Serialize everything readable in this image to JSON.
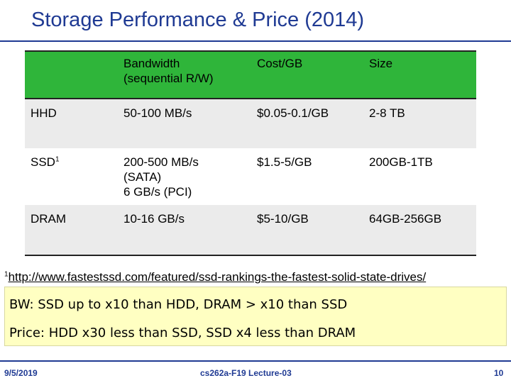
{
  "slide": {
    "title": "Storage Performance & Price (2014)"
  },
  "table": {
    "headers": [
      "",
      "Bandwidth\n(sequential R/W)",
      "Cost/GB",
      "Size"
    ],
    "header_bandwidth_line1": "Bandwidth",
    "header_bandwidth_line2": "(sequential R/W)",
    "header_cost": "Cost/GB",
    "header_size": "Size",
    "rows": [
      {
        "name": "HHD",
        "bandwidth": "50-100 MB/s",
        "cost": "$0.05-0.1/GB",
        "size": "2-8 TB"
      },
      {
        "name": "SSD",
        "name_sup": "1",
        "bandwidth_line1": "200-500 MB/s",
        "bandwidth_line2": "(SATA)",
        "bandwidth_line3": "6 GB/s (PCI)",
        "cost": "$1.5-5/GB",
        "size": "200GB-1TB"
      },
      {
        "name": "DRAM",
        "bandwidth": "10-16 GB/s",
        "cost": "$5-10/GB",
        "size": "64GB-256GB"
      }
    ]
  },
  "footnote": {
    "marker": "1",
    "url": "http://www.fastestssd.com/featured/ssd-rankings-the-fastest-solid-state-drives/"
  },
  "note": {
    "line1": "BW: SSD up to x10 than HDD, DRAM > x10 than SSD",
    "line2": "Price: HDD x30 less than SSD, SSD x4 less than DRAM"
  },
  "footer": {
    "date": "9/5/2019",
    "course": "cs262a-F19 Lecture-03",
    "page": "10"
  },
  "colors": {
    "title": "#1f3a93",
    "header_bg": "#2fb53a",
    "row_alt_bg": "#ebebeb",
    "note_bg": "#ffffc2"
  }
}
